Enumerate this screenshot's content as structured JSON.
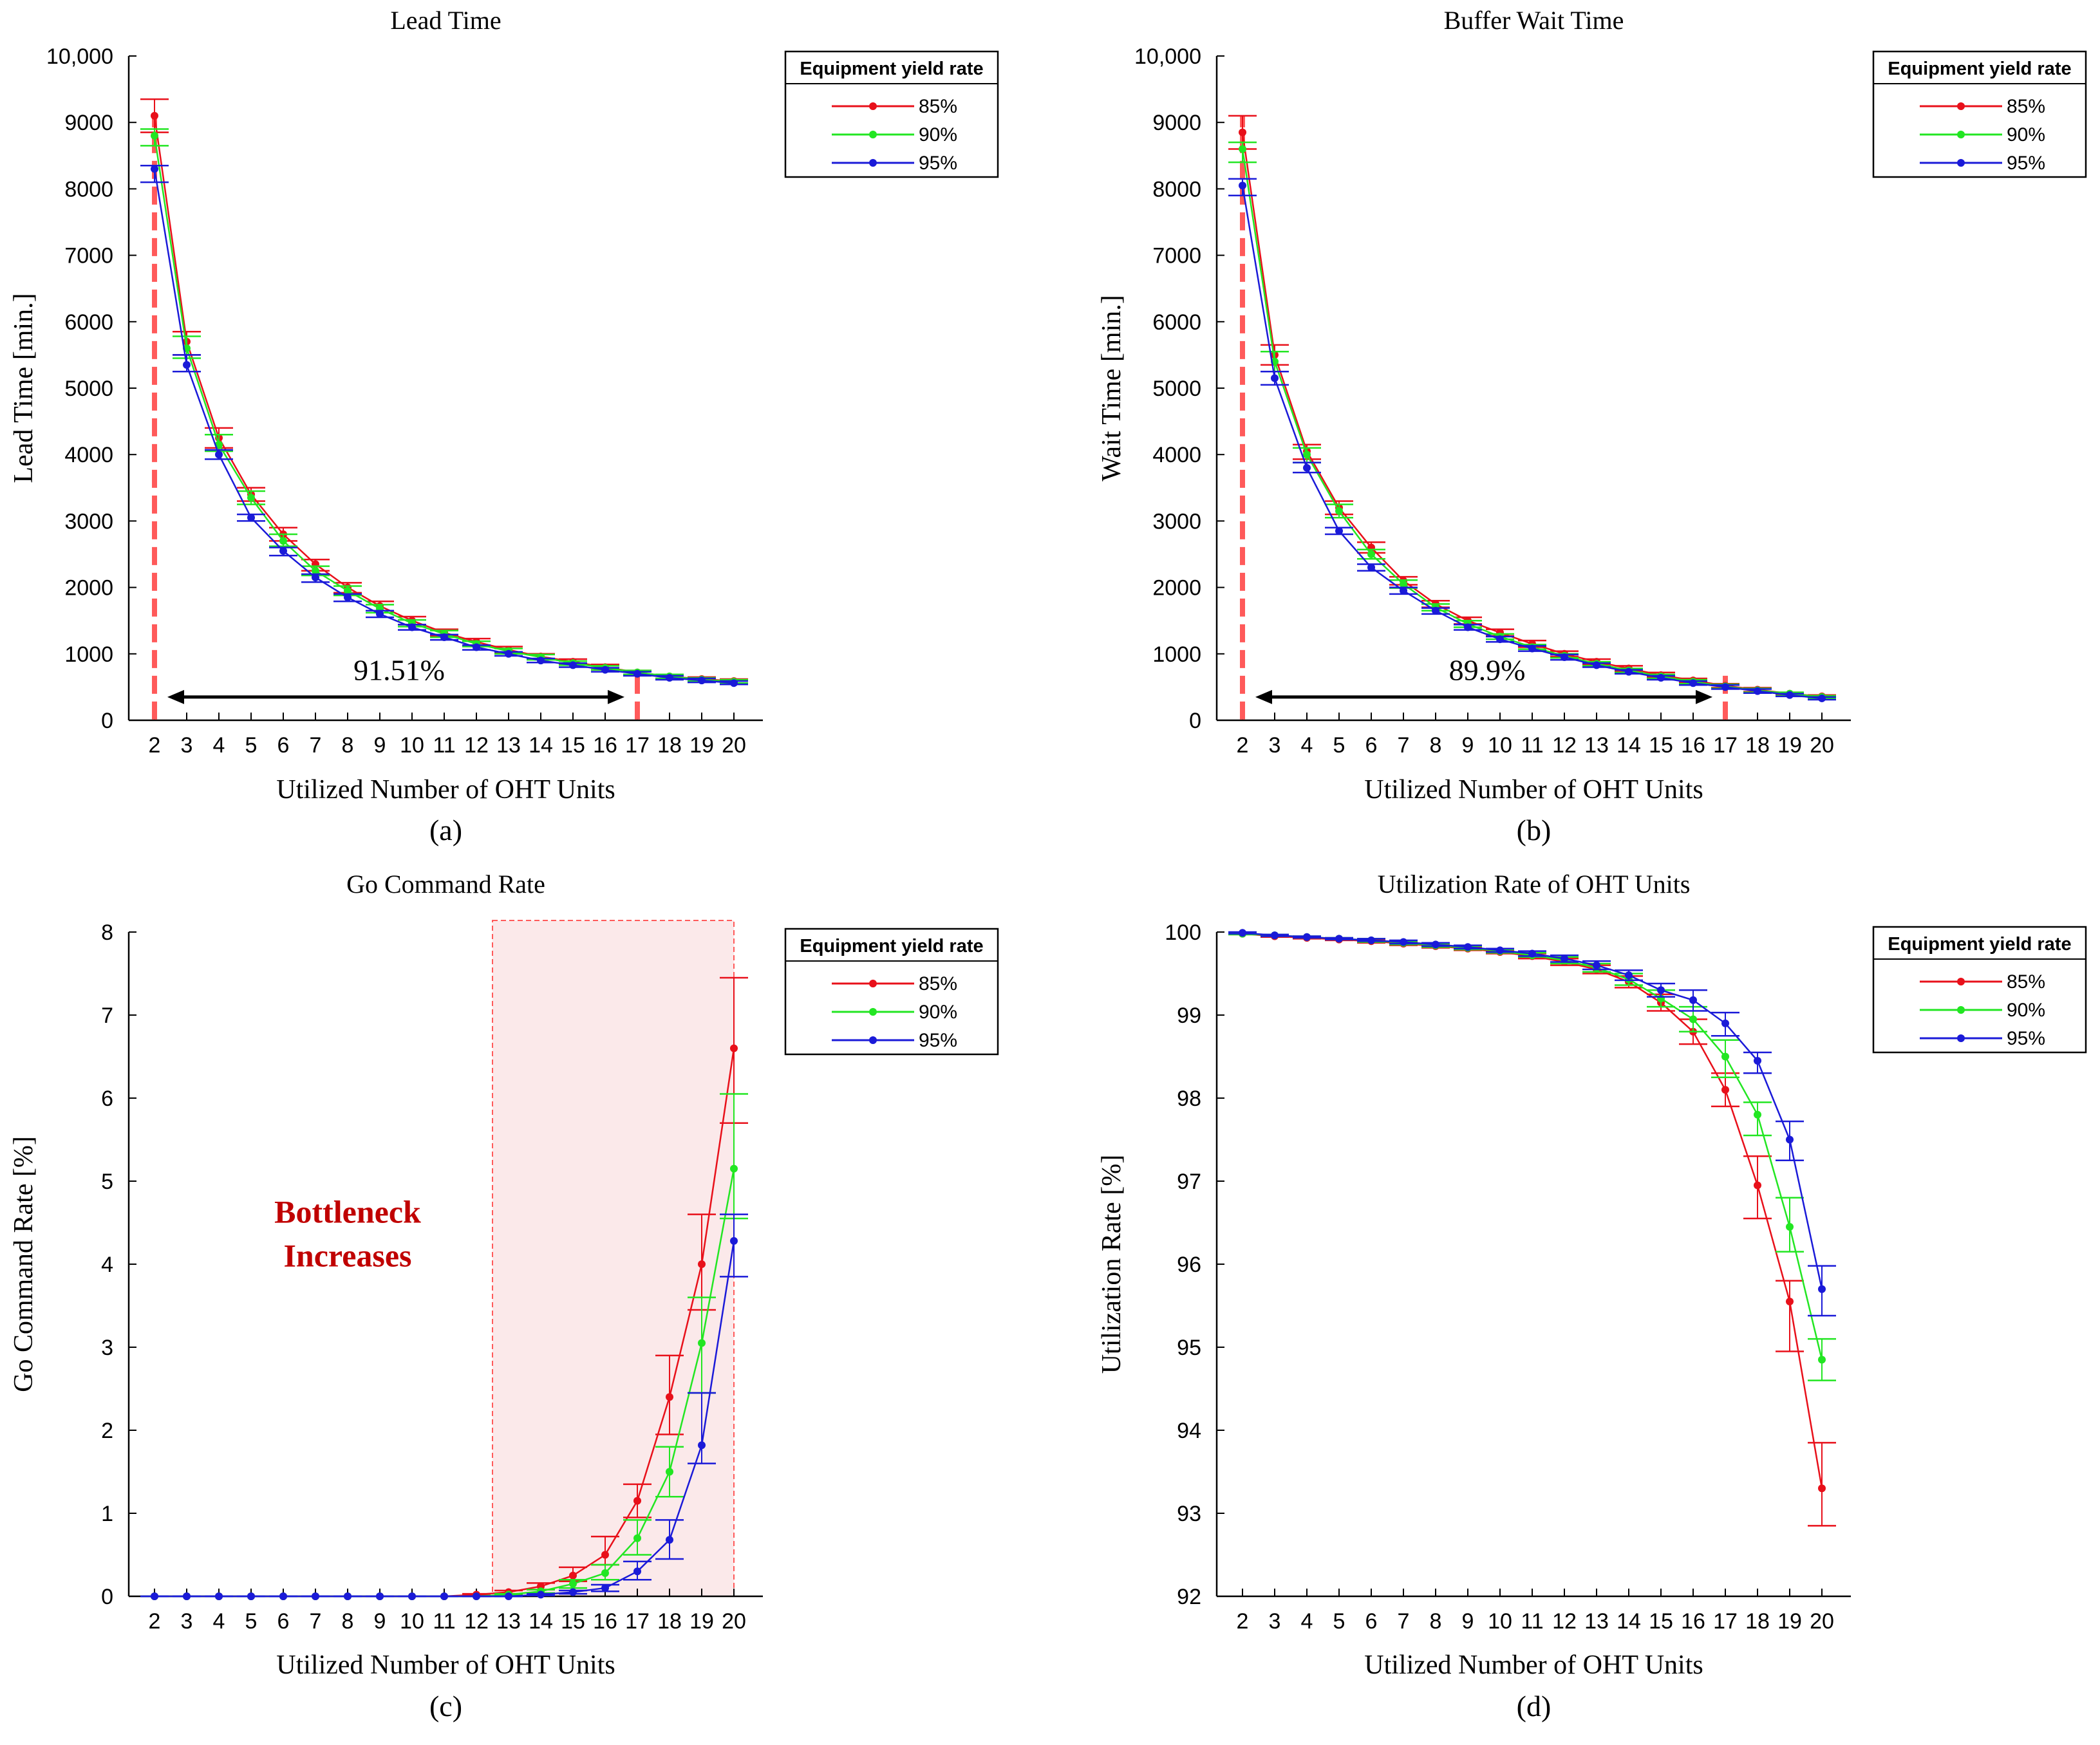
{
  "colors": {
    "s85": "#e8101a",
    "s90": "#22e622",
    "s95": "#1a1ad8",
    "marker": "#ff5a5a",
    "shade": "#fbe9ea"
  },
  "chart_data": [
    {
      "type": "line",
      "title": "Lead Time",
      "caption": "(a)",
      "xlabel": "Utilized Number of OHT Units",
      "ylabel": "Lead Time [min.]",
      "x": [
        2,
        3,
        4,
        5,
        6,
        7,
        8,
        9,
        10,
        11,
        12,
        13,
        14,
        15,
        16,
        17,
        18,
        19,
        20
      ],
      "xlim": [
        1.2,
        20.9
      ],
      "ylim": [
        0,
        10000
      ],
      "yticks": [
        0,
        1000,
        2000,
        3000,
        4000,
        5000,
        6000,
        7000,
        8000,
        9000,
        10000
      ],
      "ytick_labels": [
        "0",
        "1000",
        "2000",
        "3000",
        "4000",
        "5000",
        "6000",
        "7000",
        "8000",
        "9000",
        "10,000"
      ],
      "legend": {
        "title": "Equipment yield rate",
        "placement": "top-right"
      },
      "series": [
        {
          "name": "85%",
          "color": "#e8101a",
          "values": [
            9100,
            5700,
            4250,
            3400,
            2800,
            2350,
            2000,
            1720,
            1500,
            1320,
            1180,
            1060,
            960,
            880,
            800,
            720,
            660,
            620,
            590
          ],
          "err_low": [
            8850,
            5500,
            4100,
            3300,
            2700,
            2250,
            1920,
            1650,
            1440,
            1270,
            1130,
            1010,
            920,
            840,
            760,
            690,
            630,
            590,
            560
          ],
          "err_high": [
            9350,
            5850,
            4400,
            3500,
            2900,
            2420,
            2070,
            1790,
            1560,
            1370,
            1230,
            1110,
            1000,
            920,
            840,
            750,
            690,
            650,
            620
          ]
        },
        {
          "name": "90%",
          "color": "#22e622",
          "values": [
            8800,
            5600,
            4150,
            3350,
            2700,
            2250,
            1950,
            1680,
            1460,
            1300,
            1150,
            1040,
            950,
            860,
            790,
            720,
            660,
            610,
            580
          ],
          "err_low": [
            8650,
            5450,
            4050,
            3250,
            2620,
            2180,
            1880,
            1620,
            1410,
            1250,
            1110,
            1000,
            910,
            830,
            760,
            690,
            630,
            590,
            560
          ],
          "err_high": [
            8900,
            5780,
            4300,
            3450,
            2800,
            2320,
            2020,
            1740,
            1510,
            1350,
            1190,
            1080,
            990,
            890,
            820,
            750,
            690,
            640,
            610
          ]
        },
        {
          "name": "95%",
          "color": "#1a1ad8",
          "values": [
            8300,
            5350,
            4000,
            3050,
            2550,
            2150,
            1850,
            1600,
            1400,
            1250,
            1100,
            1000,
            900,
            830,
            760,
            700,
            640,
            600,
            560
          ],
          "err_low": [
            8100,
            5250,
            3930,
            3000,
            2480,
            2080,
            1790,
            1550,
            1360,
            1210,
            1060,
            970,
            870,
            800,
            730,
            670,
            610,
            570,
            540
          ],
          "err_high": [
            8350,
            5500,
            4070,
            3100,
            2600,
            2200,
            1900,
            1650,
            1440,
            1290,
            1130,
            1030,
            930,
            860,
            790,
            730,
            670,
            630,
            590
          ]
        }
      ],
      "annotations": {
        "markers": [
          2,
          17
        ],
        "arrow_y": 350,
        "text": "91.51%",
        "text_pos": [
          9.6,
          750
        ]
      }
    },
    {
      "type": "line",
      "title": "Buffer Wait Time",
      "caption": "(b)",
      "xlabel": "Utilized Number of OHT Units",
      "ylabel": "Wait Time [min.]",
      "x": [
        2,
        3,
        4,
        5,
        6,
        7,
        8,
        9,
        10,
        11,
        12,
        13,
        14,
        15,
        16,
        17,
        18,
        19,
        20
      ],
      "xlim": [
        1.2,
        20.9
      ],
      "ylim": [
        0,
        10000
      ],
      "yticks": [
        0,
        1000,
        2000,
        3000,
        4000,
        5000,
        6000,
        7000,
        8000,
        9000,
        10000
      ],
      "ytick_labels": [
        "0",
        "1000",
        "2000",
        "3000",
        "4000",
        "5000",
        "6000",
        "7000",
        "8000",
        "9000",
        "10,000"
      ],
      "legend": {
        "title": "Equipment yield rate",
        "placement": "top-right"
      },
      "series": [
        {
          "name": "85%",
          "color": "#e8101a",
          "values": [
            8850,
            5500,
            4050,
            3200,
            2600,
            2100,
            1750,
            1500,
            1320,
            1150,
            1000,
            880,
            780,
            680,
            600,
            520,
            460,
            400,
            360
          ],
          "err_low": [
            8600,
            5350,
            3930,
            3100,
            2520,
            2040,
            1700,
            1450,
            1270,
            1100,
            960,
            840,
            740,
            650,
            570,
            490,
            430,
            380,
            340
          ],
          "err_high": [
            9100,
            5650,
            4150,
            3300,
            2680,
            2160,
            1800,
            1550,
            1370,
            1200,
            1040,
            920,
            820,
            720,
            630,
            550,
            490,
            420,
            380
          ]
        },
        {
          "name": "90%",
          "color": "#22e622",
          "values": [
            8600,
            5400,
            4000,
            3150,
            2500,
            2050,
            1700,
            1450,
            1260,
            1100,
            970,
            850,
            750,
            660,
            580,
            510,
            450,
            400,
            350
          ],
          "err_low": [
            8400,
            5250,
            3880,
            3050,
            2430,
            1990,
            1650,
            1400,
            1220,
            1070,
            940,
            820,
            720,
            630,
            550,
            480,
            420,
            370,
            330
          ],
          "err_high": [
            8700,
            5550,
            4100,
            3250,
            2570,
            2110,
            1750,
            1500,
            1300,
            1140,
            1000,
            880,
            780,
            690,
            610,
            540,
            480,
            420,
            370
          ]
        },
        {
          "name": "95%",
          "color": "#1a1ad8",
          "values": [
            8050,
            5150,
            3800,
            2850,
            2300,
            1950,
            1650,
            1400,
            1220,
            1080,
            950,
            830,
            730,
            640,
            560,
            500,
            440,
            380,
            330
          ],
          "err_low": [
            7900,
            5050,
            3730,
            2800,
            2250,
            1900,
            1600,
            1360,
            1180,
            1040,
            910,
            800,
            700,
            610,
            530,
            470,
            410,
            360,
            310
          ],
          "err_high": [
            8150,
            5250,
            3880,
            2900,
            2350,
            2000,
            1690,
            1440,
            1260,
            1120,
            990,
            860,
            760,
            670,
            590,
            530,
            470,
            400,
            350
          ]
        }
      ],
      "annotations": {
        "markers": [
          2,
          17
        ],
        "arrow_y": 350,
        "text": "89.9%",
        "text_pos": [
          9.6,
          750
        ]
      }
    },
    {
      "type": "line",
      "title": "Go Command Rate",
      "caption": "(c)",
      "xlabel": "Utilized Number of OHT Units",
      "ylabel": "Go Command Rate [%]",
      "x": [
        2,
        3,
        4,
        5,
        6,
        7,
        8,
        9,
        10,
        11,
        12,
        13,
        14,
        15,
        16,
        17,
        18,
        19,
        20
      ],
      "xlim": [
        1.2,
        20.9
      ],
      "ylim": [
        0,
        8
      ],
      "yticks": [
        0,
        1,
        2,
        3,
        4,
        5,
        6,
        7,
        8
      ],
      "ytick_labels": [
        "0",
        "1",
        "2",
        "3",
        "4",
        "5",
        "6",
        "7",
        "8"
      ],
      "legend": {
        "title": "Equipment yield rate",
        "placement": "top-right"
      },
      "series": [
        {
          "name": "85%",
          "color": "#e8101a",
          "values": [
            0,
            0,
            0,
            0,
            0,
            0,
            0,
            0,
            0,
            0,
            0.02,
            0.05,
            0.12,
            0.25,
            0.5,
            1.15,
            2.4,
            4.0,
            6.6
          ],
          "err_low": [
            0,
            0,
            0,
            0,
            0,
            0,
            0,
            0,
            0,
            0,
            0.01,
            0.03,
            0.08,
            0.18,
            0.38,
            0.95,
            1.95,
            3.45,
            5.7
          ],
          "err_high": [
            0,
            0,
            0,
            0,
            0,
            0,
            0,
            0,
            0,
            0,
            0.03,
            0.07,
            0.16,
            0.35,
            0.72,
            1.35,
            2.9,
            4.6,
            7.45
          ]
        },
        {
          "name": "90%",
          "color": "#22e622",
          "values": [
            0,
            0,
            0,
            0,
            0,
            0,
            0,
            0,
            0,
            0,
            0,
            0.02,
            0.06,
            0.15,
            0.28,
            0.7,
            1.5,
            3.05,
            5.15
          ],
          "err_low": [
            0,
            0,
            0,
            0,
            0,
            0,
            0,
            0,
            0,
            0,
            0,
            0.01,
            0.04,
            0.1,
            0.2,
            0.5,
            1.2,
            2.45,
            4.55
          ],
          "err_high": [
            0,
            0,
            0,
            0,
            0,
            0,
            0,
            0,
            0,
            0,
            0,
            0.03,
            0.08,
            0.2,
            0.38,
            0.92,
            1.8,
            3.6,
            6.05
          ]
        },
        {
          "name": "95%",
          "color": "#1a1ad8",
          "values": [
            0,
            0,
            0,
            0,
            0,
            0,
            0,
            0,
            0,
            0,
            0,
            0,
            0.02,
            0.05,
            0.1,
            0.3,
            0.68,
            1.82,
            4.28
          ],
          "err_low": [
            0,
            0,
            0,
            0,
            0,
            0,
            0,
            0,
            0,
            0,
            0,
            0,
            0.01,
            0.03,
            0.06,
            0.2,
            0.45,
            1.6,
            3.85
          ],
          "err_high": [
            0,
            0,
            0,
            0,
            0,
            0,
            0,
            0,
            0,
            0,
            0,
            0,
            0.03,
            0.07,
            0.14,
            0.42,
            0.92,
            2.45,
            4.6
          ]
        }
      ],
      "annotations": {
        "shade_from": 13,
        "shade_to": 20,
        "label_lines": [
          "Bottleneck",
          "Increases"
        ],
        "label_pos": [
          8.0,
          4.5
        ]
      }
    },
    {
      "type": "line",
      "title": "Utilization Rate of OHT Units",
      "caption": "(d)",
      "xlabel": "Utilized Number of OHT Units",
      "ylabel": "Utilization Rate [%]",
      "x": [
        2,
        3,
        4,
        5,
        6,
        7,
        8,
        9,
        10,
        11,
        12,
        13,
        14,
        15,
        16,
        17,
        18,
        19,
        20
      ],
      "xlim": [
        1.2,
        20.9
      ],
      "ylim": [
        92,
        100
      ],
      "yticks": [
        92,
        93,
        94,
        95,
        96,
        97,
        98,
        99,
        100
      ],
      "ytick_labels": [
        "92",
        "93",
        "94",
        "95",
        "96",
        "97",
        "98",
        "99",
        "100"
      ],
      "legend": {
        "title": "Equipment yield rate",
        "placement": "top-right"
      },
      "series": [
        {
          "name": "85%",
          "color": "#e8101a",
          "values": [
            99.98,
            99.95,
            99.93,
            99.91,
            99.89,
            99.86,
            99.83,
            99.8,
            99.76,
            99.71,
            99.64,
            99.55,
            99.4,
            99.15,
            98.8,
            98.1,
            96.95,
            95.55,
            93.3
          ],
          "err_low": [
            99.97,
            99.94,
            99.92,
            99.9,
            99.87,
            99.84,
            99.81,
            99.78,
            99.74,
            99.68,
            99.6,
            99.5,
            99.33,
            99.05,
            98.65,
            97.9,
            96.55,
            94.95,
            92.85
          ],
          "err_high": [
            99.99,
            99.96,
            99.94,
            99.92,
            99.91,
            99.88,
            99.85,
            99.82,
            99.78,
            99.74,
            99.68,
            99.6,
            99.47,
            99.25,
            98.95,
            98.3,
            97.3,
            95.8,
            93.85
          ]
        },
        {
          "name": "90%",
          "color": "#22e622",
          "values": [
            99.98,
            99.96,
            99.94,
            99.92,
            99.9,
            99.87,
            99.84,
            99.81,
            99.77,
            99.72,
            99.66,
            99.57,
            99.43,
            99.2,
            98.95,
            98.5,
            97.8,
            96.45,
            94.85
          ],
          "err_low": [
            99.97,
            99.95,
            99.93,
            99.91,
            99.88,
            99.85,
            99.82,
            99.79,
            99.75,
            99.7,
            99.62,
            99.52,
            99.36,
            99.1,
            98.8,
            98.25,
            97.55,
            96.15,
            94.6
          ],
          "err_high": [
            99.99,
            99.97,
            99.95,
            99.93,
            99.92,
            99.89,
            99.86,
            99.83,
            99.79,
            99.75,
            99.7,
            99.62,
            99.5,
            99.3,
            99.1,
            98.7,
            97.95,
            96.8,
            95.1
          ]
        },
        {
          "name": "95%",
          "color": "#1a1ad8",
          "values": [
            99.99,
            99.96,
            99.94,
            99.92,
            99.9,
            99.88,
            99.85,
            99.82,
            99.78,
            99.74,
            99.68,
            99.6,
            99.48,
            99.3,
            99.18,
            98.9,
            98.45,
            97.5,
            95.7
          ],
          "err_low": [
            99.98,
            99.95,
            99.93,
            99.91,
            99.89,
            99.86,
            99.83,
            99.8,
            99.76,
            99.71,
            99.64,
            99.55,
            99.42,
            99.22,
            99.05,
            98.75,
            98.3,
            97.25,
            95.38
          ],
          "err_high": [
            100,
            99.97,
            99.95,
            99.93,
            99.92,
            99.9,
            99.87,
            99.84,
            99.8,
            99.77,
            99.72,
            99.65,
            99.54,
            99.38,
            99.3,
            99.03,
            98.55,
            97.72,
            95.98
          ]
        }
      ],
      "annotations": {}
    }
  ]
}
